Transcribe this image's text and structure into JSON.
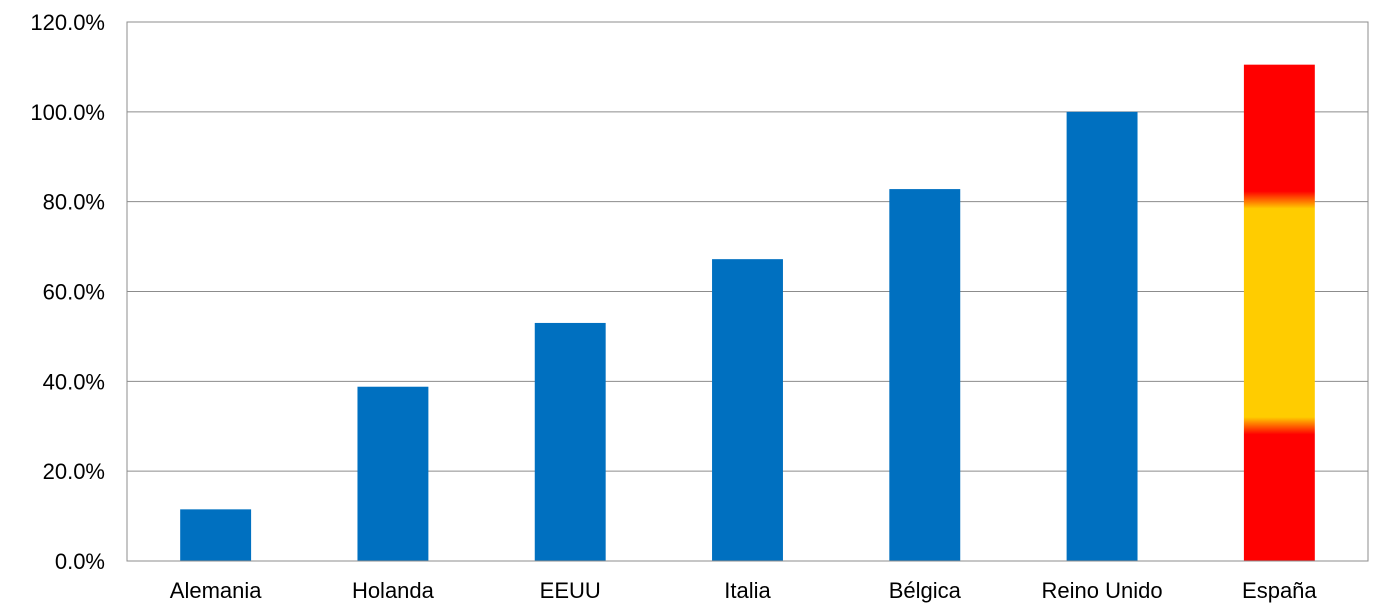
{
  "chart_data": {
    "type": "bar",
    "categories": [
      "Alemania",
      "Holanda",
      "EEUU",
      "Italia",
      "Bélgica",
      "Reino Unido",
      "España"
    ],
    "values": [
      11.5,
      38.8,
      53.0,
      67.2,
      82.8,
      100.0,
      110.5
    ],
    "ylim": [
      0,
      120
    ],
    "yticks": [
      0,
      20,
      40,
      60,
      80,
      100,
      120
    ],
    "ytick_labels": [
      "0.0%",
      "20.0%",
      "40.0%",
      "60.0%",
      "80.0%",
      "100.0%",
      "120.0%"
    ],
    "grid": true,
    "legend": "none",
    "bar_color": "#0070c0",
    "highlight": {
      "category": "España",
      "style": "Spanish flag stripes",
      "colors": {
        "red": "#ff0000",
        "yellow": "#ffcc00"
      }
    }
  }
}
